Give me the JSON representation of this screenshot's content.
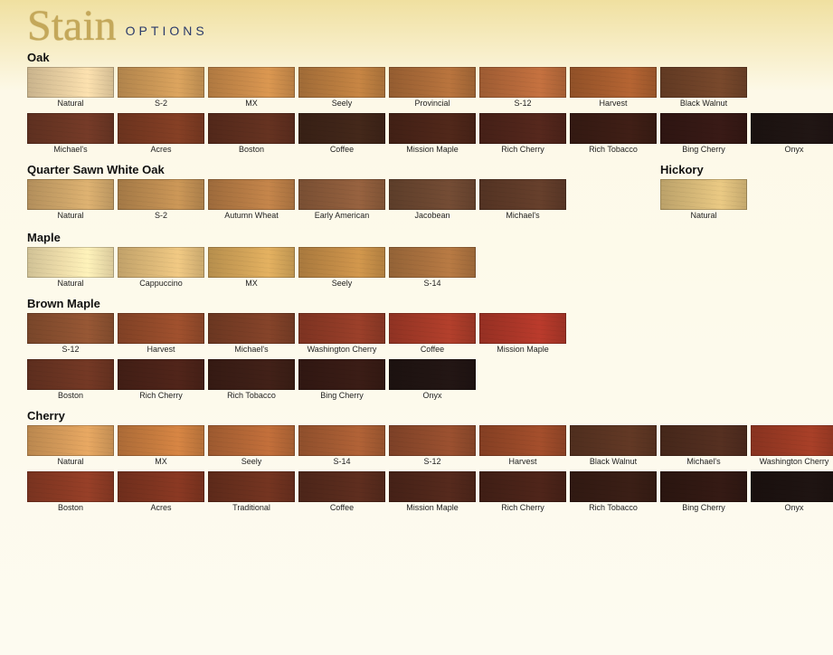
{
  "header": {
    "script": "Stain",
    "sub": "OPTIONS"
  },
  "swatch_width": 96,
  "swatch_height": 34,
  "label_fontsize": 9,
  "title_fontsize": 13,
  "sections": [
    {
      "title": "Oak",
      "rows": [
        [
          {
            "label": "Natural",
            "color": "#e6cda0"
          },
          {
            "label": "S-2",
            "color": "#c99656"
          },
          {
            "label": "MX",
            "color": "#c88a4a"
          },
          {
            "label": "Seely",
            "color": "#b67a3e"
          },
          {
            "label": "Provincial",
            "color": "#a96a38"
          },
          {
            "label": "S-12",
            "color": "#b4683a"
          },
          {
            "label": "Harvest",
            "color": "#a55c2e"
          },
          {
            "label": "Black Walnut",
            "color": "#6e4228"
          }
        ],
        [
          {
            "label": "Michael's",
            "color": "#6b3624"
          },
          {
            "label": "Acres",
            "color": "#7a3a22"
          },
          {
            "label": "Boston",
            "color": "#5d2e1e"
          },
          {
            "label": "Coffee",
            "color": "#3e2418"
          },
          {
            "label": "Mission Maple",
            "color": "#4a2418"
          },
          {
            "label": "Rich Cherry",
            "color": "#4e241a"
          },
          {
            "label": "Rich Tobacco",
            "color": "#3a1c14"
          },
          {
            "label": "Bing Cherry",
            "color": "#341814"
          },
          {
            "label": "Onyx",
            "color": "#1e1412"
          }
        ]
      ]
    },
    {
      "title": "Quarter Sawn White Oak",
      "side": {
        "title": "Hickory",
        "items": [
          {
            "label": "Natural",
            "color": "#d6b878"
          }
        ]
      },
      "rows": [
        [
          {
            "label": "Natural",
            "color": "#cba368"
          },
          {
            "label": "S-2",
            "color": "#ba8a50"
          },
          {
            "label": "Autumn Wheat",
            "color": "#b47a44"
          },
          {
            "label": "Early American",
            "color": "#8a5a3a"
          },
          {
            "label": "Jacobean",
            "color": "#6a4630"
          },
          {
            "label": "Michael's",
            "color": "#5e3a28"
          }
        ]
      ]
    },
    {
      "title": "Maple",
      "rows": [
        [
          {
            "label": "Natural",
            "color": "#eeddaa"
          },
          {
            "label": "Cappuccino",
            "color": "#dcb878"
          },
          {
            "label": "MX",
            "color": "#d0a258"
          },
          {
            "label": "Seely",
            "color": "#c08a46"
          },
          {
            "label": "S-14",
            "color": "#a8703e"
          }
        ]
      ]
    },
    {
      "title": "Brown Maple",
      "rows": [
        [
          {
            "label": "S-12",
            "color": "#8a5030"
          },
          {
            "label": "Harvest",
            "color": "#924a2a"
          },
          {
            "label": "Michael's",
            "color": "#7a3e26"
          },
          {
            "label": "Washington Cherry",
            "color": "#8e3a26"
          },
          {
            "label": "Coffee",
            "color": "#a43a28"
          },
          {
            "label": "Mission Maple",
            "color": "#aa3628"
          }
        ],
        [
          {
            "label": "Boston",
            "color": "#6a3422"
          },
          {
            "label": "Rich Cherry",
            "color": "#4a2218"
          },
          {
            "label": "Rich Tobacco",
            "color": "#3c1e16"
          },
          {
            "label": "Bing Cherry",
            "color": "#361a14"
          },
          {
            "label": "Onyx",
            "color": "#201412"
          }
        ]
      ]
    },
    {
      "title": "Cherry",
      "rows": [
        [
          {
            "label": "Natural",
            "color": "#d49a5a"
          },
          {
            "label": "MX",
            "color": "#c47a3e"
          },
          {
            "label": "Seely",
            "color": "#b26636"
          },
          {
            "label": "S-14",
            "color": "#a25a32"
          },
          {
            "label": "S-12",
            "color": "#8e4a2c"
          },
          {
            "label": "Harvest",
            "color": "#964828"
          },
          {
            "label": "Black Walnut",
            "color": "#5a3422"
          },
          {
            "label": "Michael's",
            "color": "#4e2c1e"
          },
          {
            "label": "Washington Cherry",
            "color": "#9a3a24"
          }
        ],
        [
          {
            "label": "Boston",
            "color": "#8a3a24"
          },
          {
            "label": "Acres",
            "color": "#7e3420"
          },
          {
            "label": "Traditional",
            "color": "#6a301e"
          },
          {
            "label": "Coffee",
            "color": "#562a1c"
          },
          {
            "label": "Mission Maple",
            "color": "#4e261a"
          },
          {
            "label": "Rich Cherry",
            "color": "#482218"
          },
          {
            "label": "Rich Tobacco",
            "color": "#361c14"
          },
          {
            "label": "Bing Cherry",
            "color": "#301812"
          },
          {
            "label": "Onyx",
            "color": "#1c1210"
          }
        ]
      ]
    }
  ]
}
